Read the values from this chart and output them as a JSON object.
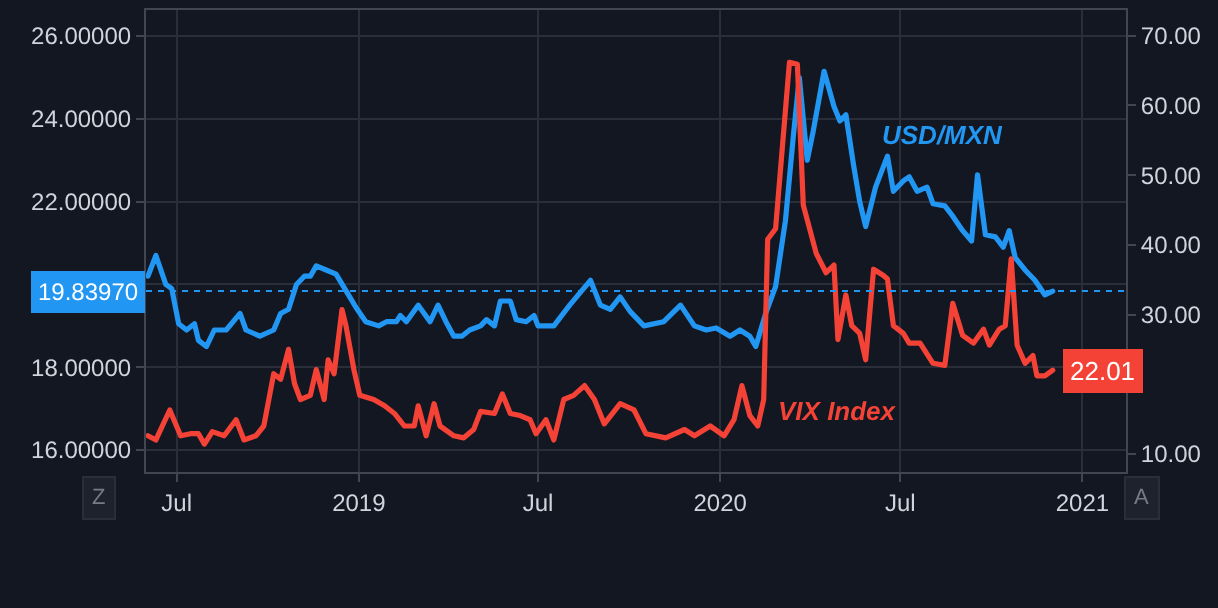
{
  "chart_data": {
    "type": "line",
    "legend": false,
    "grid": true,
    "line_style": "solid",
    "marker": "none",
    "xlim": [
      "2018-05-31",
      "2021-02-14"
    ],
    "xticks": [
      {
        "value": "2018-07-01",
        "label": "Jul"
      },
      {
        "value": "2019-01-01",
        "label": "2019"
      },
      {
        "value": "2019-07-01",
        "label": "Jul"
      },
      {
        "value": "2020-01-01",
        "label": "2020"
      },
      {
        "value": "2020-07-01",
        "label": "Jul"
      },
      {
        "value": "2021-01-01",
        "label": "2021"
      }
    ],
    "ylim": [
      15.47,
      26.63
    ],
    "yticks": [
      {
        "value": 16,
        "label": "16.00000"
      },
      {
        "value": 18,
        "label": "18.00000"
      },
      {
        "value": 20,
        "label": null
      },
      {
        "value": 22,
        "label": "22.00000"
      },
      {
        "value": 24,
        "label": "24.00000"
      },
      {
        "value": 26,
        "label": "26.00000"
      }
    ],
    "y2lim": [
      7.4,
      73.7
    ],
    "y2ticks": [
      {
        "value": 10,
        "label": "10.00"
      },
      {
        "value": 20,
        "label": null
      },
      {
        "value": 30,
        "label": "30.00"
      },
      {
        "value": 40,
        "label": "40.00"
      },
      {
        "value": 50,
        "label": "50.00"
      },
      {
        "value": 60,
        "label": "60.00"
      },
      {
        "value": 70,
        "label": "70.00"
      }
    ],
    "ref_lines": [
      {
        "axis": "y",
        "value": 19.8397,
        "label": "19.83970",
        "color": "#2196f3",
        "line_style": "dotted"
      }
    ],
    "annotations": [
      "Z",
      "A"
    ],
    "series": [
      {
        "name": "USD/MXN",
        "color": "#2196f3",
        "x": [
          "2018-06-02",
          "2018-06-10",
          "2018-06-20",
          "2018-06-26",
          "2018-07-03",
          "2018-07-11",
          "2018-07-19",
          "2018-07-23",
          "2018-07-31",
          "2018-08-08",
          "2018-08-20",
          "2018-09-03",
          "2018-09-09",
          "2018-09-23",
          "2018-10-07",
          "2018-10-14",
          "2018-10-22",
          "2018-10-30",
          "2018-11-07",
          "2018-11-13",
          "2018-11-19",
          "2018-11-29",
          "2018-12-09",
          "2018-12-19",
          "2018-12-29",
          "2019-01-08",
          "2019-01-21",
          "2019-01-29",
          "2019-02-08",
          "2019-02-12",
          "2019-02-18",
          "2019-03-02",
          "2019-03-14",
          "2019-03-22",
          "2019-03-30",
          "2019-04-07",
          "2019-04-15",
          "2019-04-23",
          "2019-05-04",
          "2019-05-10",
          "2019-05-18",
          "2019-05-24",
          "2019-06-03",
          "2019-06-09",
          "2019-06-19",
          "2019-06-27",
          "2019-07-01",
          "2019-07-17",
          "2019-08-02",
          "2019-08-23",
          "2019-09-02",
          "2019-09-12",
          "2019-09-22",
          "2019-10-02",
          "2019-10-16",
          "2019-11-05",
          "2019-11-22",
          "2019-12-06",
          "2019-12-18",
          "2019-12-28",
          "2020-01-11",
          "2020-01-21",
          "2020-01-31",
          "2020-02-06",
          "2020-02-16",
          "2020-02-26",
          "2020-03-07",
          "2020-03-15",
          "2020-03-21",
          "2020-03-29",
          "2020-04-04",
          "2020-04-15",
          "2020-04-25",
          "2020-05-01",
          "2020-05-07",
          "2020-05-15",
          "2020-05-21",
          "2020-05-27",
          "2020-06-06",
          "2020-06-18",
          "2020-06-24",
          "2020-07-04",
          "2020-07-10",
          "2020-07-18",
          "2020-07-28",
          "2020-08-03",
          "2020-08-15",
          "2020-08-23",
          "2020-09-02",
          "2020-09-11",
          "2020-09-17",
          "2020-09-25",
          "2020-10-05",
          "2020-10-13",
          "2020-10-19",
          "2020-10-25",
          "2020-11-04",
          "2020-11-14",
          "2020-11-24",
          "2020-12-02"
        ],
        "values": [
          20.2,
          20.7,
          20.0,
          19.9,
          19.05,
          18.9,
          19.05,
          18.65,
          18.5,
          18.9,
          18.9,
          19.3,
          18.9,
          18.75,
          18.9,
          19.3,
          19.4,
          20.0,
          20.2,
          20.2,
          20.45,
          20.35,
          20.25,
          19.85,
          19.45,
          19.1,
          19.0,
          19.1,
          19.1,
          19.25,
          19.1,
          19.5,
          19.1,
          19.5,
          19.1,
          18.75,
          18.75,
          18.9,
          19.0,
          19.15,
          19.0,
          19.6,
          19.6,
          19.15,
          19.1,
          19.25,
          19.0,
          19.0,
          19.5,
          20.1,
          19.5,
          19.4,
          19.7,
          19.35,
          19.0,
          19.1,
          19.5,
          19.0,
          18.9,
          18.95,
          18.75,
          18.9,
          18.75,
          18.5,
          19.3,
          19.95,
          21.55,
          23.6,
          25.0,
          23.0,
          23.7,
          25.15,
          24.3,
          23.95,
          24.1,
          22.85,
          22.0,
          21.4,
          22.35,
          23.1,
          22.25,
          22.5,
          22.6,
          22.25,
          22.35,
          21.95,
          21.9,
          21.65,
          21.3,
          21.05,
          22.65,
          21.2,
          21.15,
          20.9,
          21.3,
          20.65,
          20.35,
          20.1,
          19.75,
          19.8397
        ]
      },
      {
        "name": "VIX Index",
        "color": "#f44336",
        "axis": "y2",
        "x": [
          "2018-06-02",
          "2018-06-10",
          "2018-06-24",
          "2018-07-05",
          "2018-07-15",
          "2018-07-23",
          "2018-07-29",
          "2018-08-06",
          "2018-08-18",
          "2018-08-30",
          "2018-09-07",
          "2018-09-19",
          "2018-09-27",
          "2018-10-07",
          "2018-10-14",
          "2018-10-22",
          "2018-10-28",
          "2018-11-03",
          "2018-11-13",
          "2018-11-19",
          "2018-11-27",
          "2018-12-01",
          "2018-12-07",
          "2018-12-15",
          "2018-12-19",
          "2018-12-27",
          "2019-01-02",
          "2019-01-16",
          "2019-01-27",
          "2019-02-06",
          "2019-02-16",
          "2019-02-26",
          "2019-03-02",
          "2019-03-10",
          "2019-03-18",
          "2019-03-24",
          "2019-04-07",
          "2019-04-17",
          "2019-04-27",
          "2019-05-04",
          "2019-05-18",
          "2019-05-26",
          "2019-06-03",
          "2019-06-13",
          "2019-06-23",
          "2019-06-29",
          "2019-07-09",
          "2019-07-17",
          "2019-07-27",
          "2019-08-06",
          "2019-08-17",
          "2019-08-27",
          "2019-09-06",
          "2019-09-22",
          "2019-10-06",
          "2019-10-18",
          "2019-11-07",
          "2019-11-26",
          "2019-12-06",
          "2019-12-22",
          "2020-01-05",
          "2020-01-15",
          "2020-01-23",
          "2020-01-31",
          "2020-02-08",
          "2020-02-14",
          "2020-02-18",
          "2020-02-26",
          "2020-03-11",
          "2020-03-19",
          "2020-03-25",
          "2020-04-07",
          "2020-04-17",
          "2020-04-25",
          "2020-04-29",
          "2020-05-07",
          "2020-05-13",
          "2020-05-21",
          "2020-05-27",
          "2020-06-04",
          "2020-06-14",
          "2020-06-18",
          "2020-06-24",
          "2020-07-04",
          "2020-07-10",
          "2020-07-21",
          "2020-08-03",
          "2020-08-15",
          "2020-08-23",
          "2020-09-02",
          "2020-09-13",
          "2020-09-23",
          "2020-09-29",
          "2020-10-09",
          "2020-10-15",
          "2020-10-21",
          "2020-10-27",
          "2020-11-04",
          "2020-11-12",
          "2020-11-16",
          "2020-11-24",
          "2020-12-02"
        ],
        "values": [
          12.6,
          12.0,
          16.3,
          12.6,
          12.9,
          12.9,
          11.4,
          13.2,
          12.6,
          14.9,
          12.0,
          12.6,
          14.0,
          21.5,
          20.7,
          25.0,
          20.1,
          17.8,
          18.4,
          22.1,
          17.8,
          23.5,
          21.5,
          30.7,
          28.4,
          22.1,
          18.4,
          17.8,
          16.9,
          15.8,
          14.0,
          14.0,
          16.9,
          12.6,
          17.2,
          14.0,
          12.6,
          12.3,
          13.5,
          16.1,
          15.8,
          18.6,
          15.8,
          15.5,
          14.9,
          12.9,
          14.9,
          12.0,
          17.8,
          18.4,
          19.8,
          17.8,
          14.3,
          17.2,
          16.3,
          12.9,
          12.3,
          13.5,
          12.6,
          14.0,
          12.6,
          14.9,
          19.8,
          15.5,
          14.0,
          17.8,
          40.8,
          42.3,
          66.2,
          65.9,
          45.7,
          38.8,
          36.0,
          37.1,
          26.4,
          32.8,
          28.4,
          27.3,
          23.5,
          36.5,
          35.6,
          35.1,
          28.4,
          27.3,
          25.9,
          25.9,
          23.0,
          22.7,
          31.6,
          27.0,
          25.9,
          27.9,
          25.6,
          27.9,
          28.4,
          38.0,
          25.6,
          23.0,
          24.1,
          21.2,
          21.2,
          22.01
        ],
        "value_labels": [
          null,
          null,
          null,
          null,
          null,
          null,
          null,
          null,
          null,
          null,
          null,
          null,
          null,
          null,
          null,
          null,
          null,
          null,
          null,
          null,
          null,
          null,
          null,
          null,
          null,
          null,
          null,
          null,
          null,
          null,
          null,
          null,
          null,
          null,
          null,
          null,
          null,
          null,
          null,
          null,
          null,
          null,
          null,
          null,
          null,
          null,
          null,
          null,
          null,
          null,
          null,
          null,
          null,
          null,
          null,
          null,
          null,
          null,
          null,
          null,
          null,
          null,
          null,
          null,
          null,
          null,
          null,
          null,
          null,
          null,
          null,
          null,
          null,
          null,
          null,
          null,
          null,
          null,
          null,
          null,
          null,
          null,
          null,
          null,
          null,
          null,
          null,
          null,
          null,
          null,
          null,
          null,
          null,
          null,
          null,
          null,
          null,
          null,
          null,
          null,
          null,
          "22.01"
        ]
      }
    ]
  }
}
